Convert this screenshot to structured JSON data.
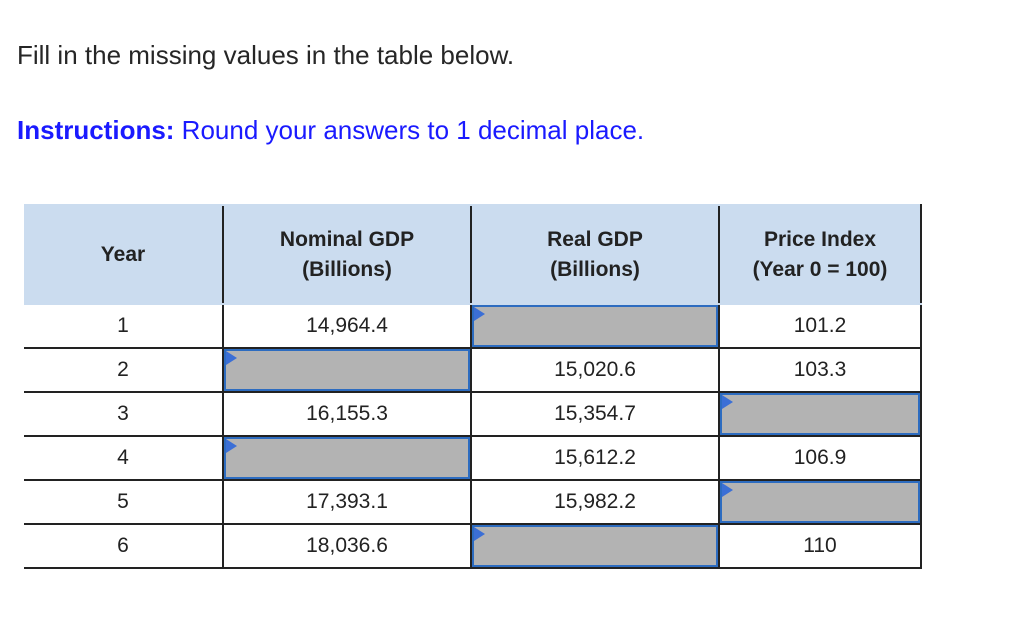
{
  "prompt": "Fill in the missing values in the table below.",
  "instructions": {
    "lead": "Instructions:",
    "text": " Round your answers to 1 decimal place."
  },
  "table": {
    "headers": [
      {
        "line1": "Year",
        "line2": ""
      },
      {
        "line1": "Nominal GDP",
        "line2": "(Billions)"
      },
      {
        "line1": "Real GDP",
        "line2": "(Billions)"
      },
      {
        "line1": "Price Index",
        "line2": "(Year 0 = 100)"
      }
    ],
    "rows": [
      {
        "year": "1",
        "nominal": "14,964.4",
        "real": "",
        "index": "101.2"
      },
      {
        "year": "2",
        "nominal": "",
        "real": "15,020.6",
        "index": "103.3"
      },
      {
        "year": "3",
        "nominal": "16,155.3",
        "real": "15,354.7",
        "index": ""
      },
      {
        "year": "4",
        "nominal": "",
        "real": "15,612.2",
        "index": "106.9"
      },
      {
        "year": "5",
        "nominal": "17,393.1",
        "real": "15,982.2",
        "index": ""
      },
      {
        "year": "6",
        "nominal": "18,036.6",
        "real": "",
        "index": "110"
      }
    ]
  },
  "colors": {
    "header_bg": "#cbdcef",
    "answer_bg": "#b3b3b3",
    "answer_border": "#2d6cc0",
    "instructions_text": "#1a1aff"
  }
}
